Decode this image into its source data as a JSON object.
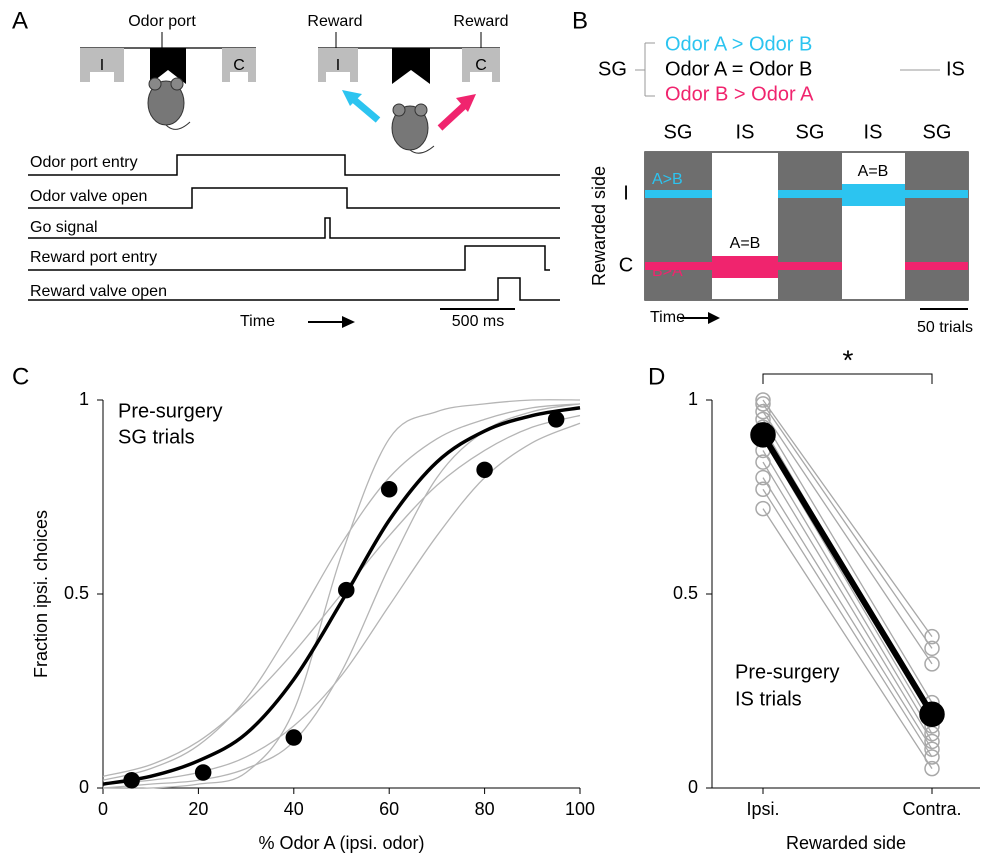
{
  "panel_labels": [
    "A",
    "B",
    "C",
    "D"
  ],
  "panel_a": {
    "port_label": "Odor port",
    "reward_labels": [
      "Reward",
      "Reward"
    ],
    "side_letters": [
      "I",
      "C",
      "I",
      "C"
    ],
    "traces": [
      "Odor port entry",
      "Odor valve open",
      "Go signal",
      "Reward port entry",
      "Reward valve open"
    ],
    "time": "Time",
    "scale": "500 ms"
  },
  "panel_b": {
    "left": "SG",
    "right": "IS",
    "rules": [
      "Odor A > Odor B",
      "Odor A = Odor B",
      "Odor B > Odor A"
    ],
    "blocks": [
      "SG",
      "IS",
      "SG",
      "IS",
      "SG"
    ],
    "ylabel": "Rewarded side",
    "sides": [
      "I",
      "C"
    ],
    "tags": [
      "A>B",
      "B>A",
      "A=B",
      "A=B"
    ],
    "time": "Time",
    "scale": "50 trials"
  },
  "chart_data": [
    {
      "type": "line",
      "xlabel": "% Odor A (ipsi. odor)",
      "ylabel": "Fraction ipsi. choices",
      "annotations": [
        "Pre-surgery",
        "SG trials"
      ],
      "xlim": [
        0,
        100
      ],
      "xticks": [
        0,
        20,
        40,
        60,
        80,
        100
      ],
      "ylim": [
        0,
        1
      ],
      "yticks": [
        0,
        0.5,
        1
      ],
      "series": [
        {
          "color": "#b5b5b5",
          "x": [
            0,
            10,
            20,
            30,
            40,
            50,
            60,
            70,
            80,
            90,
            100
          ],
          "values": [
            0.0,
            0.0,
            0.01,
            0.04,
            0.2,
            0.6,
            0.9,
            0.97,
            0.99,
            1.0,
            1.0
          ]
        },
        {
          "color": "#b5b5b5",
          "x": [
            0,
            10,
            20,
            30,
            40,
            50,
            60,
            70,
            80,
            90,
            100
          ],
          "values": [
            0.03,
            0.06,
            0.12,
            0.22,
            0.35,
            0.5,
            0.65,
            0.78,
            0.87,
            0.93,
            0.96
          ]
        },
        {
          "color": "#b5b5b5",
          "x": [
            0,
            10,
            20,
            30,
            40,
            50,
            60,
            70,
            80,
            90,
            100
          ],
          "values": [
            0.0,
            0.01,
            0.02,
            0.05,
            0.12,
            0.3,
            0.57,
            0.8,
            0.92,
            0.97,
            0.99
          ]
        },
        {
          "color": "#b5b5b5",
          "x": [
            0,
            10,
            20,
            30,
            40,
            50,
            60,
            70,
            80,
            90,
            100
          ],
          "values": [
            0.02,
            0.05,
            0.11,
            0.23,
            0.42,
            0.63,
            0.8,
            0.9,
            0.95,
            0.98,
            0.99
          ]
        },
        {
          "color": "#b5b5b5",
          "x": [
            0,
            10,
            20,
            30,
            40,
            50,
            60,
            70,
            80,
            90,
            100
          ],
          "values": [
            0.01,
            0.02,
            0.04,
            0.08,
            0.16,
            0.29,
            0.47,
            0.65,
            0.8,
            0.89,
            0.94
          ]
        },
        {
          "color": "#000000",
          "x": [
            0,
            10,
            20,
            30,
            40,
            50,
            60,
            70,
            80,
            90,
            100
          ],
          "values": [
            0.01,
            0.03,
            0.07,
            0.14,
            0.28,
            0.48,
            0.69,
            0.84,
            0.92,
            0.96,
            0.98
          ]
        },
        {
          "color": "#000000",
          "marker": "filled",
          "line": false,
          "x": [
            6,
            21,
            40,
            51,
            60,
            80,
            95
          ],
          "values": [
            0.02,
            0.04,
            0.13,
            0.51,
            0.77,
            0.82,
            0.95
          ]
        }
      ]
    },
    {
      "type": "line",
      "xlabel": "Rewarded side",
      "annotations": [
        "Pre-surgery",
        "IS trials"
      ],
      "significance": "*",
      "categories": [
        "Ipsi.",
        "Contra."
      ],
      "ylim": [
        0,
        1
      ],
      "yticks": [
        0,
        0.5,
        1
      ],
      "series": [
        {
          "color": "#a8a8a8",
          "marker": "open",
          "values": [
            1.0,
            0.39
          ]
        },
        {
          "color": "#a8a8a8",
          "marker": "open",
          "values": [
            0.99,
            0.36
          ]
        },
        {
          "color": "#a8a8a8",
          "marker": "open",
          "values": [
            0.97,
            0.32
          ]
        },
        {
          "color": "#a8a8a8",
          "marker": "open",
          "values": [
            0.95,
            0.22
          ]
        },
        {
          "color": "#a8a8a8",
          "marker": "open",
          "values": [
            0.93,
            0.18
          ]
        },
        {
          "color": "#a8a8a8",
          "marker": "open",
          "values": [
            0.9,
            0.16
          ]
        },
        {
          "color": "#a8a8a8",
          "marker": "open",
          "values": [
            0.87,
            0.14
          ]
        },
        {
          "color": "#a8a8a8",
          "marker": "open",
          "values": [
            0.84,
            0.12
          ]
        },
        {
          "color": "#a8a8a8",
          "marker": "open",
          "values": [
            0.8,
            0.1
          ]
        },
        {
          "color": "#a8a8a8",
          "marker": "open",
          "values": [
            0.77,
            0.08
          ]
        },
        {
          "color": "#a8a8a8",
          "marker": "open",
          "values": [
            0.72,
            0.05
          ]
        },
        {
          "color": "#000000",
          "marker": "filled",
          "values": [
            0.91,
            0.19
          ]
        }
      ]
    }
  ]
}
